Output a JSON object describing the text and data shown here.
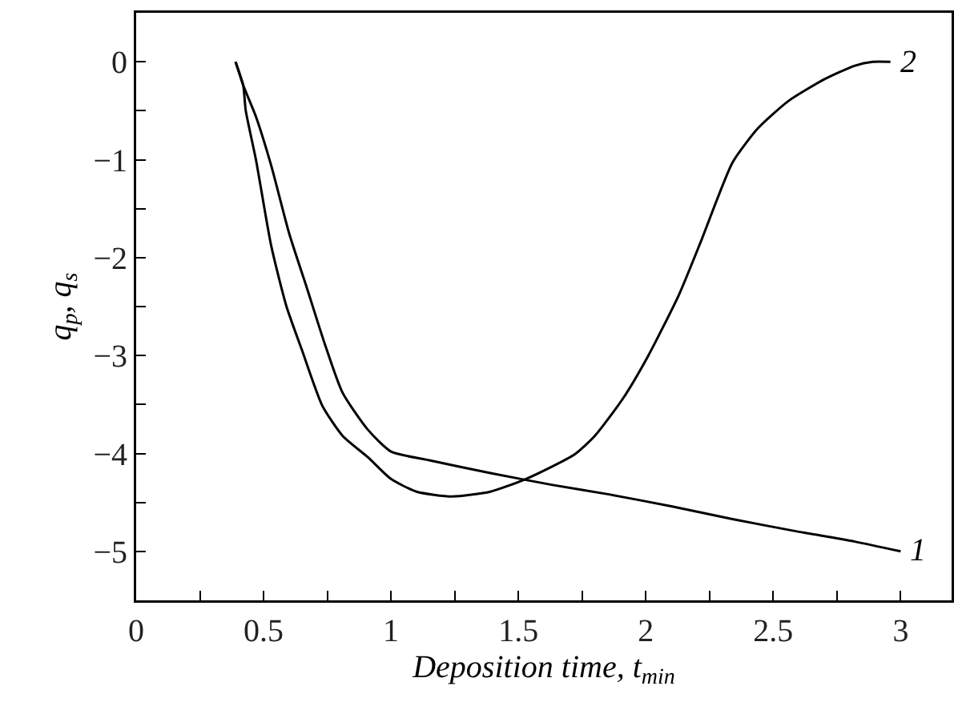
{
  "chart_data": {
    "type": "line",
    "xlabel": "Deposition time, t$_{min}$",
    "ylabel": "q$_{p}$, q$_{s}$",
    "xlim": [
      0,
      3.2
    ],
    "ylim": [
      -5.5,
      0.5
    ],
    "xticks": [
      0,
      {
        "value": 0.25,
        "label": null
      },
      0.5,
      {
        "value": 0.75,
        "label": null
      },
      1,
      {
        "value": 1.25,
        "label": null
      },
      1.5,
      {
        "value": 1.75,
        "label": null
      },
      2,
      {
        "value": 2.25,
        "label": null
      },
      2.5,
      {
        "value": 2.75,
        "label": null
      },
      3
    ],
    "yticks": [
      {
        "value": -5,
        "label": "−5"
      },
      {
        "value": -4.5,
        "label": null
      },
      {
        "value": -4,
        "label": "−4"
      },
      {
        "value": -3.5,
        "label": null
      },
      {
        "value": -3,
        "label": "−3"
      },
      {
        "value": -2.5,
        "label": null
      },
      {
        "value": -2,
        "label": "−2"
      },
      {
        "value": -1.5,
        "label": null
      },
      {
        "value": -1,
        "label": "−1"
      },
      {
        "value": -0.5,
        "label": null
      },
      0
    ],
    "grid": false,
    "legend": false,
    "marker": "none",
    "line_style": "solid",
    "series": [
      {
        "name": "1",
        "color": "#000000",
        "x": [
          0.39,
          0.42,
          0.47,
          0.53,
          0.6,
          0.67,
          0.74,
          0.81,
          0.91,
          1.0,
          1.15,
          1.39,
          1.63,
          1.86,
          2.1,
          2.34,
          2.58,
          2.82,
          3.0
        ],
        "values": [
          0,
          -0.24,
          -0.56,
          -1.06,
          -1.75,
          -2.31,
          -2.88,
          -3.38,
          -3.76,
          -3.98,
          -4.07,
          -4.2,
          -4.32,
          -4.42,
          -4.54,
          -4.67,
          -4.79,
          -4.9,
          -5.0
        ]
      },
      {
        "name": "2",
        "color": "#000000",
        "x": [
          0.39,
          0.42,
          0.43,
          0.47,
          0.53,
          0.59,
          0.65,
          0.73,
          0.81,
          0.91,
          1.0,
          1.1,
          1.24,
          1.39,
          1.53,
          1.72,
          1.8,
          1.91,
          2.01,
          2.13,
          2.22,
          2.34,
          2.44,
          2.56,
          2.7,
          2.82,
          2.89,
          2.96
        ],
        "values": [
          0,
          -0.24,
          -0.5,
          -1.0,
          -1.88,
          -2.5,
          -2.94,
          -3.51,
          -3.82,
          -4.04,
          -4.26,
          -4.39,
          -4.44,
          -4.39,
          -4.26,
          -4.01,
          -3.82,
          -3.44,
          -3.0,
          -2.38,
          -1.81,
          -1.03,
          -0.68,
          -0.4,
          -0.18,
          -0.04,
          0,
          0
        ]
      }
    ]
  }
}
